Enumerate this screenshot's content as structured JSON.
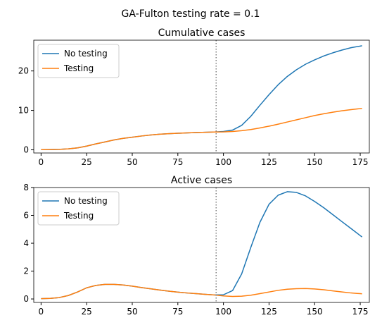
{
  "figure": {
    "suptitle": "GA-Fulton testing rate = 0.1"
  },
  "chart_data": [
    {
      "type": "line",
      "title": "Cumulative cases",
      "xlabel": "",
      "ylabel": "",
      "xlim": [
        -4,
        180
      ],
      "ylim": [
        -0.8,
        27.8
      ],
      "xticks": [
        0,
        25,
        50,
        75,
        100,
        125,
        150,
        175
      ],
      "yticks": [
        0,
        10,
        20
      ],
      "grid": false,
      "legend": "upper-left",
      "vline": {
        "x": 96,
        "style": "dotted",
        "color": "#808080"
      },
      "series": [
        {
          "name": "No testing",
          "color": "#1f77b4",
          "x": [
            0,
            5,
            10,
            15,
            20,
            25,
            30,
            35,
            40,
            45,
            50,
            55,
            60,
            65,
            70,
            75,
            80,
            85,
            90,
            95,
            100,
            105,
            110,
            115,
            120,
            125,
            130,
            135,
            140,
            145,
            150,
            155,
            160,
            165,
            170,
            175,
            176
          ],
          "values": [
            0.05,
            0.07,
            0.12,
            0.25,
            0.5,
            0.95,
            1.5,
            2.0,
            2.5,
            2.9,
            3.2,
            3.5,
            3.75,
            3.95,
            4.1,
            4.2,
            4.3,
            4.38,
            4.45,
            4.52,
            4.65,
            5.0,
            6.2,
            8.5,
            11.3,
            14.0,
            16.5,
            18.6,
            20.3,
            21.7,
            22.8,
            23.8,
            24.6,
            25.3,
            25.9,
            26.3,
            26.4
          ]
        },
        {
          "name": "Testing",
          "color": "#ff7f0e",
          "x": [
            0,
            5,
            10,
            15,
            20,
            25,
            30,
            35,
            40,
            45,
            50,
            55,
            60,
            65,
            70,
            75,
            80,
            85,
            90,
            95,
            100,
            105,
            110,
            115,
            120,
            125,
            130,
            135,
            140,
            145,
            150,
            155,
            160,
            165,
            170,
            175,
            176
          ],
          "values": [
            0.05,
            0.07,
            0.12,
            0.25,
            0.5,
            0.95,
            1.5,
            2.0,
            2.5,
            2.9,
            3.2,
            3.5,
            3.75,
            3.95,
            4.1,
            4.2,
            4.3,
            4.38,
            4.45,
            4.52,
            4.55,
            4.65,
            4.85,
            5.15,
            5.55,
            6.0,
            6.5,
            7.05,
            7.6,
            8.15,
            8.7,
            9.15,
            9.55,
            9.9,
            10.2,
            10.45,
            10.5
          ]
        }
      ]
    },
    {
      "type": "line",
      "title": "Active cases",
      "xlabel": "",
      "ylabel": "",
      "xlim": [
        -4,
        180
      ],
      "ylim": [
        -0.25,
        8.0
      ],
      "xticks": [
        0,
        25,
        50,
        75,
        100,
        125,
        150,
        175
      ],
      "yticks": [
        0,
        2,
        4,
        6,
        8
      ],
      "grid": false,
      "legend": "upper-left",
      "vline": {
        "x": 96,
        "style": "dotted",
        "color": "#808080"
      },
      "series": [
        {
          "name": "No testing",
          "color": "#1f77b4",
          "x": [
            0,
            5,
            10,
            15,
            20,
            25,
            30,
            35,
            40,
            45,
            50,
            55,
            60,
            65,
            70,
            75,
            80,
            85,
            90,
            95,
            100,
            105,
            110,
            115,
            120,
            125,
            130,
            135,
            140,
            145,
            150,
            155,
            160,
            165,
            170,
            175,
            176
          ],
          "values": [
            0.02,
            0.04,
            0.1,
            0.25,
            0.5,
            0.8,
            0.97,
            1.05,
            1.05,
            1.0,
            0.92,
            0.82,
            0.73,
            0.64,
            0.56,
            0.49,
            0.43,
            0.38,
            0.33,
            0.29,
            0.3,
            0.6,
            1.8,
            3.7,
            5.5,
            6.8,
            7.45,
            7.7,
            7.65,
            7.4,
            7.0,
            6.55,
            6.05,
            5.55,
            5.05,
            4.55,
            4.45
          ]
        },
        {
          "name": "Testing",
          "color": "#ff7f0e",
          "x": [
            0,
            5,
            10,
            15,
            20,
            25,
            30,
            35,
            40,
            45,
            50,
            55,
            60,
            65,
            70,
            75,
            80,
            85,
            90,
            95,
            100,
            105,
            110,
            115,
            120,
            125,
            130,
            135,
            140,
            145,
            150,
            155,
            160,
            165,
            170,
            175,
            176
          ],
          "values": [
            0.02,
            0.04,
            0.1,
            0.25,
            0.5,
            0.8,
            0.97,
            1.05,
            1.05,
            1.0,
            0.92,
            0.82,
            0.73,
            0.64,
            0.56,
            0.49,
            0.43,
            0.38,
            0.33,
            0.29,
            0.22,
            0.18,
            0.2,
            0.27,
            0.38,
            0.5,
            0.62,
            0.7,
            0.74,
            0.75,
            0.72,
            0.66,
            0.58,
            0.5,
            0.43,
            0.38,
            0.37
          ]
        }
      ]
    }
  ]
}
